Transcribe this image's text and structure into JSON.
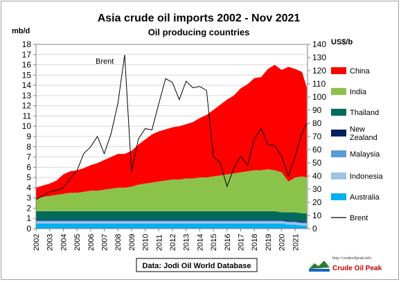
{
  "chart_data": {
    "type": "area",
    "title": "Asia crude oil imports 2002 - Nov 2021",
    "subtitle": "Oil producing countries",
    "ylabel_left": "mb/d",
    "ylabel_right": "US$/b",
    "ylim_left": [
      0,
      18
    ],
    "ylim_right": [
      0,
      140
    ],
    "yticks_left": [
      0,
      1,
      2,
      3,
      4,
      5,
      6,
      7,
      8,
      9,
      10,
      11,
      12,
      13,
      14,
      15,
      16,
      17,
      18
    ],
    "yticks_right": [
      0,
      10,
      20,
      30,
      40,
      50,
      60,
      70,
      80,
      90,
      100,
      110,
      120,
      130,
      140
    ],
    "xticks": [
      "2002",
      "2003",
      "2004",
      "2005",
      "2006",
      "2007",
      "2008",
      "2009",
      "2010",
      "2011",
      "2012",
      "2013",
      "2014",
      "2015",
      "2016",
      "2017",
      "2018",
      "2019",
      "2020",
      "2021"
    ],
    "x": [
      2002.0,
      2002.5,
      2003.0,
      2003.5,
      2004.0,
      2004.5,
      2005.0,
      2005.5,
      2006.0,
      2006.5,
      2007.0,
      2007.5,
      2008.0,
      2008.5,
      2009.0,
      2009.5,
      2010.0,
      2010.5,
      2011.0,
      2011.5,
      2012.0,
      2012.5,
      2013.0,
      2013.5,
      2014.0,
      2014.5,
      2015.0,
      2015.5,
      2016.0,
      2016.5,
      2017.0,
      2017.5,
      2018.0,
      2018.5,
      2019.0,
      2019.5,
      2020.0,
      2020.5,
      2021.0,
      2021.5,
      2021.85
    ],
    "grid": true,
    "legend_position": "right",
    "series": [
      {
        "name": "Australia",
        "color": "#00b0f0",
        "axis": "left",
        "values": [
          0.5,
          0.5,
          0.5,
          0.5,
          0.5,
          0.5,
          0.5,
          0.5,
          0.5,
          0.5,
          0.5,
          0.5,
          0.5,
          0.5,
          0.5,
          0.5,
          0.5,
          0.5,
          0.5,
          0.5,
          0.5,
          0.5,
          0.5,
          0.5,
          0.5,
          0.5,
          0.5,
          0.5,
          0.5,
          0.5,
          0.5,
          0.5,
          0.5,
          0.5,
          0.5,
          0.5,
          0.5,
          0.4,
          0.4,
          0.3,
          0.3
        ]
      },
      {
        "name": "Indonesia",
        "color": "#9dc3e6",
        "axis": "left",
        "values": [
          0.2,
          0.2,
          0.2,
          0.2,
          0.2,
          0.2,
          0.2,
          0.2,
          0.2,
          0.2,
          0.2,
          0.2,
          0.2,
          0.2,
          0.2,
          0.2,
          0.2,
          0.2,
          0.2,
          0.2,
          0.2,
          0.2,
          0.2,
          0.2,
          0.2,
          0.2,
          0.2,
          0.2,
          0.2,
          0.2,
          0.2,
          0.2,
          0.2,
          0.2,
          0.2,
          0.2,
          0.2,
          0.2,
          0.2,
          0.2,
          0.2
        ]
      },
      {
        "name": "Malaysia",
        "color": "#5b9bd5",
        "axis": "left",
        "values": [
          0.1,
          0.1,
          0.1,
          0.1,
          0.1,
          0.1,
          0.1,
          0.1,
          0.1,
          0.1,
          0.1,
          0.1,
          0.1,
          0.1,
          0.1,
          0.1,
          0.1,
          0.1,
          0.1,
          0.1,
          0.1,
          0.1,
          0.1,
          0.1,
          0.1,
          0.1,
          0.1,
          0.1,
          0.1,
          0.1,
          0.1,
          0.1,
          0.1,
          0.1,
          0.1,
          0.1,
          0.1,
          0.1,
          0.1,
          0.1,
          0.1
        ]
      },
      {
        "name": "New Zealand",
        "color": "#002060",
        "axis": "left",
        "values": [
          0.1,
          0.1,
          0.1,
          0.1,
          0.1,
          0.1,
          0.1,
          0.1,
          0.1,
          0.1,
          0.1,
          0.1,
          0.1,
          0.1,
          0.1,
          0.1,
          0.1,
          0.1,
          0.1,
          0.1,
          0.1,
          0.1,
          0.1,
          0.1,
          0.1,
          0.1,
          0.1,
          0.1,
          0.1,
          0.1,
          0.1,
          0.1,
          0.1,
          0.1,
          0.1,
          0.1,
          0.1,
          0.1,
          0.1,
          0.1,
          0.1
        ]
      },
      {
        "name": "Thailand",
        "color": "#006b5a",
        "axis": "left",
        "values": [
          0.8,
          0.8,
          0.8,
          0.8,
          0.8,
          0.8,
          0.8,
          0.8,
          0.8,
          0.8,
          0.8,
          0.8,
          0.8,
          0.8,
          0.8,
          0.8,
          0.8,
          0.8,
          0.8,
          0.8,
          0.8,
          0.8,
          0.8,
          0.8,
          0.8,
          0.8,
          0.8,
          0.8,
          0.8,
          0.8,
          0.8,
          0.8,
          0.8,
          0.8,
          0.8,
          0.8,
          0.7,
          0.8,
          0.8,
          0.8,
          0.8
        ]
      },
      {
        "name": "India",
        "color": "#8bc34a",
        "axis": "left",
        "values": [
          1.2,
          1.4,
          1.5,
          1.6,
          1.7,
          1.8,
          1.8,
          1.9,
          2.0,
          2.0,
          2.1,
          2.2,
          2.3,
          2.3,
          2.4,
          2.6,
          2.7,
          2.8,
          2.9,
          3.0,
          3.1,
          3.1,
          3.2,
          3.2,
          3.3,
          3.3,
          3.4,
          3.5,
          3.6,
          3.7,
          3.8,
          3.9,
          4.0,
          4.0,
          4.1,
          4.0,
          3.9,
          3.0,
          3.4,
          3.6,
          3.5
        ]
      },
      {
        "name": "China",
        "color": "#ff0000",
        "axis": "left",
        "values": [
          1.1,
          1.1,
          1.2,
          1.4,
          1.9,
          2.1,
          2.2,
          2.3,
          2.5,
          2.7,
          2.9,
          3.1,
          3.3,
          3.3,
          3.5,
          3.9,
          4.3,
          4.7,
          4.9,
          5.0,
          5.1,
          5.2,
          5.3,
          5.5,
          5.8,
          6.1,
          6.5,
          6.9,
          7.3,
          7.6,
          8.2,
          8.5,
          9.0,
          9.1,
          9.8,
          10.3,
          10.0,
          11.2,
          10.6,
          10.2,
          8.8
        ]
      },
      {
        "name": "Brent",
        "color": "#000000",
        "axis": "right",
        "values": [
          22,
          25,
          28,
          29,
          31,
          38,
          44,
          57,
          62,
          70,
          57,
          72,
          95,
          132,
          43,
          68,
          76,
          75,
          95,
          114,
          111,
          98,
          112,
          107,
          108,
          105,
          55,
          50,
          32,
          46,
          55,
          48,
          68,
          76,
          64,
          63,
          55,
          40,
          55,
          73,
          80
        ]
      }
    ],
    "annotations": [
      {
        "text": "Brent"
      }
    ],
    "source": "Data: Jodi Oil World Database"
  },
  "watermark": {
    "url": "http://crudeoilpeak.info",
    "logo_text": "Crude Oil Peak"
  }
}
